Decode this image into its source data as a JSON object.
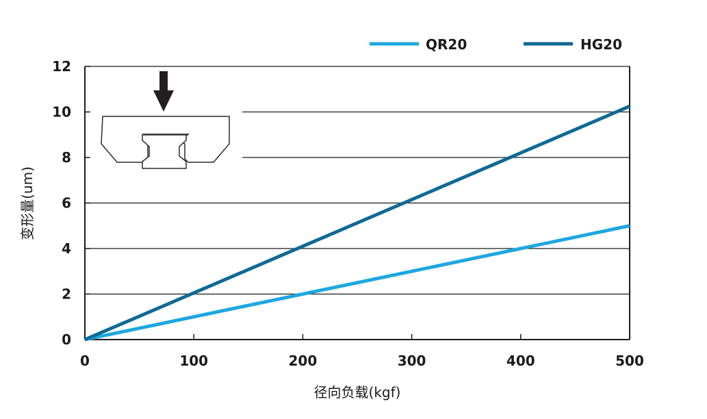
{
  "chart_data": {
    "type": "line",
    "xlabel": "径向负载(kgf)",
    "ylabel": "变形量(um)",
    "xlim": [
      0,
      500
    ],
    "ylim": [
      0,
      12
    ],
    "x_ticks": [
      "0",
      "100",
      "200",
      "300",
      "400",
      "500"
    ],
    "y_ticks": [
      "0",
      "2",
      "4",
      "6",
      "8",
      "10",
      "12"
    ],
    "grid": "horizontal",
    "legend_position": "top-right",
    "series": [
      {
        "name": "QR20",
        "color": "#1ea7e1",
        "x": [
          0,
          500
        ],
        "y": [
          0,
          5.0
        ]
      },
      {
        "name": "HG20",
        "color": "#0e6a94",
        "x": [
          0,
          500
        ],
        "y": [
          0,
          10.25
        ]
      }
    ]
  },
  "inset": {
    "icon": "down-arrow-icon",
    "shape": "rail-cross-section"
  }
}
